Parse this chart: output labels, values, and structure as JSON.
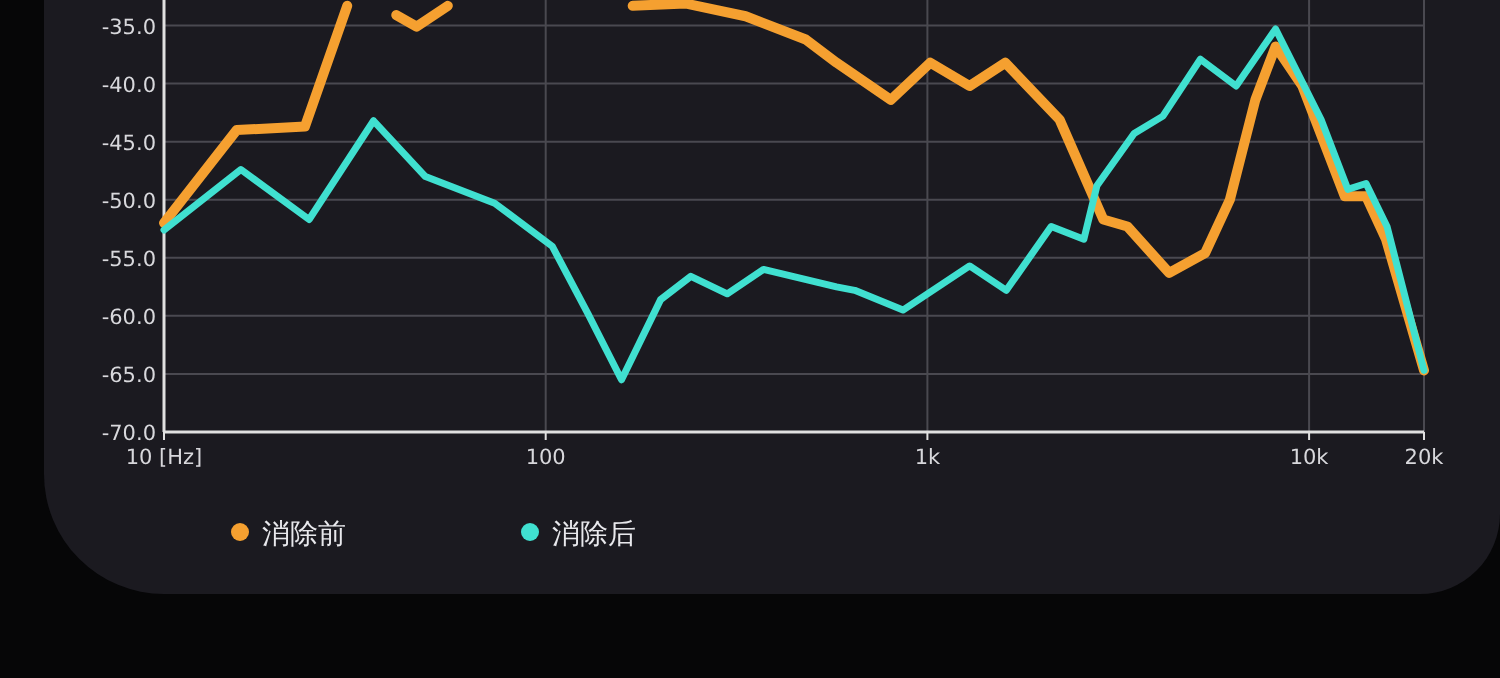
{
  "chart_data": {
    "type": "line",
    "log": "x",
    "grid": true,
    "legend": "bottom left",
    "marker": "none",
    "line_style": "solid",
    "xlim": [
      10,
      20000
    ],
    "ylim": [
      -70,
      -32.8
    ],
    "xticks": [
      {
        "value": 10,
        "label": "10 [Hz]"
      },
      {
        "value": 100,
        "label": "100"
      },
      {
        "value": 1000,
        "label": "1k"
      },
      {
        "value": 10000,
        "label": "10k"
      },
      {
        "value": 20000,
        "label": "20k"
      }
    ],
    "yticks": [
      {
        "value": -70,
        "label": "-70.0"
      },
      {
        "value": -65,
        "label": "-65.0"
      },
      {
        "value": -60,
        "label": "-60.0"
      },
      {
        "value": -55,
        "label": "-55.0"
      },
      {
        "value": -50,
        "label": "-50.0"
      },
      {
        "value": -45,
        "label": "-45.0"
      },
      {
        "value": -40,
        "label": "-40.0"
      },
      {
        "value": -35,
        "label": "-35.0"
      }
    ],
    "series": [
      {
        "name": "消除前",
        "color": "#f5a030",
        "x": [
          10,
          15.5,
          23.4,
          30.2,
          35,
          40.6,
          45.9,
          55.4,
          120,
          169,
          232,
          334,
          480,
          578,
          802,
          1018,
          1290,
          1600,
          2220,
          2890,
          3340,
          4300,
          5340,
          6200,
          7230,
          8170,
          9600,
          12400,
          14100,
          15900,
          20000
        ],
        "values": [
          -52.0,
          -44.0,
          -43.7,
          -33.3,
          null,
          -34.1,
          -35.1,
          -33.3,
          null,
          -33.3,
          -33.1,
          -34.2,
          -36.2,
          -38.2,
          -41.4,
          -38.2,
          -40.2,
          -38.2,
          -43.1,
          -51.7,
          -52.3,
          -56.3,
          -54.6,
          -50.0,
          -41.4,
          -36.8,
          -40.2,
          -49.7,
          -49.7,
          -53.4,
          -64.7
        ]
      },
      {
        "name": "消除后",
        "color": "#40e0d0",
        "x": [
          10,
          15.9,
          24,
          35.4,
          48.4,
          73.5,
          104,
          129,
          158,
          200,
          240,
          299,
          372,
          578,
          645,
          863,
          1290,
          1610,
          2110,
          2570,
          2780,
          3480,
          4140,
          5190,
          6440,
          8170,
          10750,
          12630,
          14100,
          16000,
          20000
        ],
        "values": [
          -52.6,
          -47.4,
          -51.7,
          -43.2,
          -48.0,
          -50.3,
          -54.0,
          -59.8,
          -65.5,
          -58.6,
          -56.6,
          -58.1,
          -56.0,
          -57.5,
          -57.8,
          -59.5,
          -55.7,
          -57.8,
          -52.3,
          -53.4,
          -48.8,
          -44.3,
          -42.8,
          -37.9,
          -40.2,
          -35.3,
          -43.1,
          -49.1,
          -48.6,
          -52.3,
          -64.7
        ]
      }
    ]
  }
}
